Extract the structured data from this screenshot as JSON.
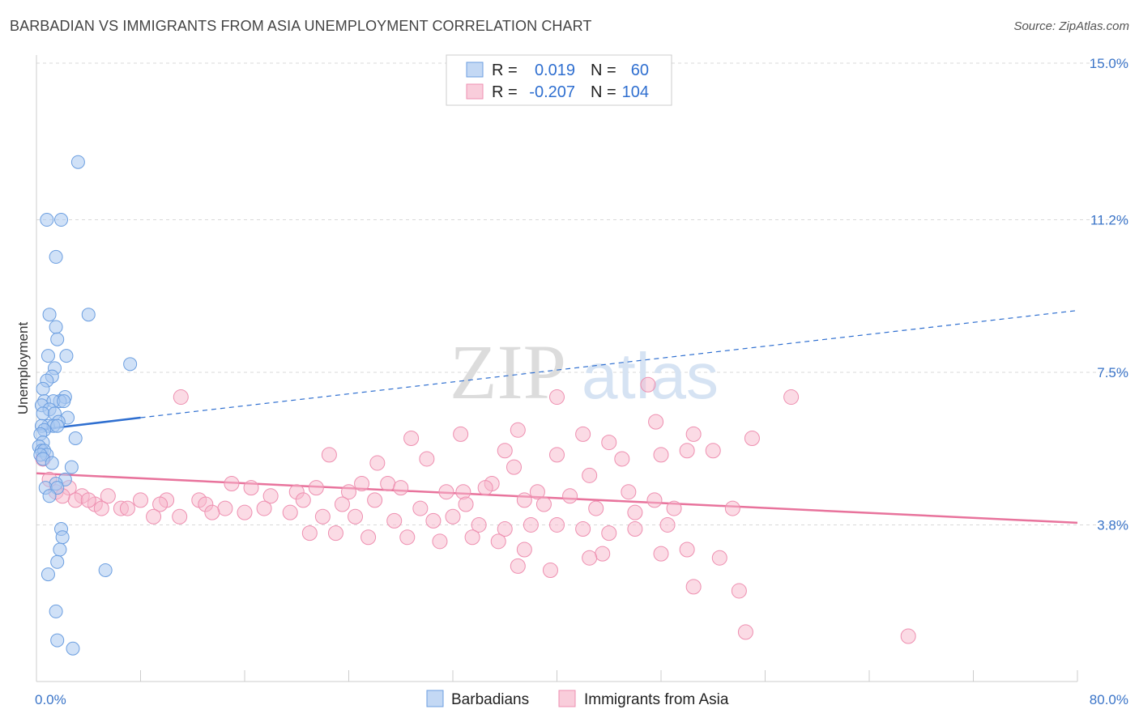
{
  "title": "BARBADIAN VS IMMIGRANTS FROM ASIA UNEMPLOYMENT CORRELATION CHART",
  "source": "Source: ZipAtlas.com",
  "watermark": {
    "zip": "ZIP",
    "atlas": "atlas"
  },
  "colors": {
    "blue_fill": "#a9c8f0",
    "blue_stroke": "#6b9ee0",
    "blue_line": "#2f6fd0",
    "pink_fill": "#f7b8cc",
    "pink_stroke": "#ee8fb0",
    "pink_line": "#e8739c",
    "grid": "#d9d9d9",
    "tick_label": "#3a74c8"
  },
  "legend": {
    "rows": [
      {
        "r_label": "R =",
        "r_value": "0.019",
        "n_label": "N =",
        "n_value": "60"
      },
      {
        "r_label": "R =",
        "r_value": "-0.207",
        "n_label": "N =",
        "n_value": "104"
      }
    ]
  },
  "chart_data": {
    "type": "scatter",
    "xlabel": "",
    "ylabel": "Unemployment",
    "x_range": [
      0,
      80
    ],
    "y_range": [
      0.0,
      15.0
    ],
    "x_tick_labels": [
      "0.0%",
      "80.0%"
    ],
    "y_ticks": [
      3.8,
      7.5,
      11.2,
      15.0
    ],
    "y_tick_labels": [
      "3.8%",
      "7.5%",
      "11.2%",
      "15.0%"
    ],
    "grid": true,
    "legend_position": "top-center",
    "series": [
      {
        "name": "Barbadians",
        "trend": {
          "x0": 0,
          "y0": 6.1,
          "x1": 8,
          "y1": 6.4,
          "dashed_to_x": 80,
          "dashed_to_y": 9.0
        },
        "points": [
          [
            3.2,
            12.6
          ],
          [
            0.8,
            11.2
          ],
          [
            1.9,
            11.2
          ],
          [
            1.5,
            10.3
          ],
          [
            4.0,
            8.9
          ],
          [
            1.0,
            8.9
          ],
          [
            1.5,
            8.6
          ],
          [
            1.6,
            8.3
          ],
          [
            2.3,
            7.9
          ],
          [
            0.9,
            7.9
          ],
          [
            7.2,
            7.7
          ],
          [
            1.4,
            7.6
          ],
          [
            1.2,
            7.4
          ],
          [
            0.8,
            7.3
          ],
          [
            0.5,
            7.1
          ],
          [
            2.2,
            6.9
          ],
          [
            0.6,
            6.8
          ],
          [
            1.8,
            6.8
          ],
          [
            1.3,
            6.8
          ],
          [
            2.1,
            6.8
          ],
          [
            0.4,
            6.7
          ],
          [
            1.0,
            6.6
          ],
          [
            0.5,
            6.5
          ],
          [
            1.4,
            6.5
          ],
          [
            2.4,
            6.4
          ],
          [
            1.7,
            6.3
          ],
          [
            0.9,
            6.2
          ],
          [
            1.3,
            6.2
          ],
          [
            1.6,
            6.2
          ],
          [
            0.4,
            6.2
          ],
          [
            0.6,
            6.1
          ],
          [
            0.3,
            6.0
          ],
          [
            3.0,
            5.9
          ],
          [
            0.5,
            5.8
          ],
          [
            0.2,
            5.7
          ],
          [
            0.4,
            5.6
          ],
          [
            0.6,
            5.6
          ],
          [
            0.8,
            5.5
          ],
          [
            0.3,
            5.5
          ],
          [
            0.5,
            5.4
          ],
          [
            1.2,
            5.3
          ],
          [
            2.7,
            5.2
          ],
          [
            2.2,
            4.9
          ],
          [
            1.5,
            4.8
          ],
          [
            0.7,
            4.7
          ],
          [
            1.6,
            4.7
          ],
          [
            1.0,
            4.5
          ],
          [
            1.9,
            3.7
          ],
          [
            2.0,
            3.5
          ],
          [
            1.8,
            3.2
          ],
          [
            1.6,
            2.9
          ],
          [
            0.9,
            2.6
          ],
          [
            5.3,
            2.7
          ],
          [
            1.5,
            1.7
          ],
          [
            1.6,
            1.0
          ],
          [
            2.8,
            0.8
          ]
        ]
      },
      {
        "name": "Immigrants from Asia",
        "trend": {
          "x0": 0,
          "y0": 5.05,
          "x1": 80,
          "y1": 3.85
        },
        "points": [
          [
            11.1,
            6.9
          ],
          [
            40.0,
            6.9
          ],
          [
            47.0,
            7.2
          ],
          [
            58.0,
            6.9
          ],
          [
            32.6,
            6.0
          ],
          [
            28.8,
            5.9
          ],
          [
            37.0,
            6.1
          ],
          [
            42.0,
            6.0
          ],
          [
            47.6,
            6.3
          ],
          [
            50.5,
            6.0
          ],
          [
            44.0,
            5.8
          ],
          [
            22.5,
            5.5
          ],
          [
            26.2,
            5.3
          ],
          [
            40.0,
            5.5
          ],
          [
            36.0,
            5.6
          ],
          [
            52.0,
            5.6
          ],
          [
            55.0,
            5.9
          ],
          [
            30.0,
            5.4
          ],
          [
            45.0,
            5.4
          ],
          [
            48.0,
            5.5
          ],
          [
            50.0,
            5.6
          ],
          [
            36.7,
            5.2
          ],
          [
            42.5,
            5.0
          ],
          [
            35.0,
            4.8
          ],
          [
            15.0,
            4.8
          ],
          [
            16.5,
            4.7
          ],
          [
            20.0,
            4.6
          ],
          [
            21.5,
            4.7
          ],
          [
            24.0,
            4.6
          ],
          [
            25.0,
            4.8
          ],
          [
            27.0,
            4.8
          ],
          [
            28.0,
            4.7
          ],
          [
            31.5,
            4.6
          ],
          [
            32.8,
            4.6
          ],
          [
            34.5,
            4.7
          ],
          [
            38.5,
            4.6
          ],
          [
            41.0,
            4.5
          ],
          [
            45.5,
            4.6
          ],
          [
            47.5,
            4.4
          ],
          [
            18.0,
            4.5
          ],
          [
            20.5,
            4.4
          ],
          [
            23.5,
            4.3
          ],
          [
            26.0,
            4.4
          ],
          [
            29.5,
            4.2
          ],
          [
            33.0,
            4.3
          ],
          [
            37.5,
            4.4
          ],
          [
            39.0,
            4.3
          ],
          [
            43.0,
            4.2
          ],
          [
            46.0,
            4.1
          ],
          [
            49.0,
            4.2
          ],
          [
            53.5,
            4.2
          ],
          [
            10.0,
            4.4
          ],
          [
            9.5,
            4.3
          ],
          [
            8.0,
            4.4
          ],
          [
            12.5,
            4.4
          ],
          [
            13.0,
            4.3
          ],
          [
            14.5,
            4.2
          ],
          [
            16.0,
            4.1
          ],
          [
            17.5,
            4.2
          ],
          [
            19.5,
            4.1
          ],
          [
            22.0,
            4.0
          ],
          [
            24.5,
            4.0
          ],
          [
            27.5,
            3.9
          ],
          [
            30.5,
            3.9
          ],
          [
            32.0,
            4.0
          ],
          [
            34.0,
            3.8
          ],
          [
            36.0,
            3.7
          ],
          [
            38.0,
            3.8
          ],
          [
            40.0,
            3.8
          ],
          [
            42.0,
            3.7
          ],
          [
            44.0,
            3.6
          ],
          [
            46.0,
            3.7
          ],
          [
            48.5,
            3.8
          ],
          [
            21.0,
            3.6
          ],
          [
            23.0,
            3.6
          ],
          [
            25.5,
            3.5
          ],
          [
            28.5,
            3.5
          ],
          [
            31.0,
            3.4
          ],
          [
            33.5,
            3.5
          ],
          [
            35.5,
            3.4
          ],
          [
            1.5,
            4.6
          ],
          [
            2.5,
            4.7
          ],
          [
            3.5,
            4.5
          ],
          [
            4.5,
            4.3
          ],
          [
            5.0,
            4.2
          ],
          [
            3.0,
            4.4
          ],
          [
            1.0,
            4.9
          ],
          [
            0.5,
            5.4
          ],
          [
            2.0,
            4.5
          ],
          [
            4.0,
            4.4
          ],
          [
            6.5,
            4.2
          ],
          [
            7.0,
            4.2
          ],
          [
            5.5,
            4.5
          ],
          [
            9.0,
            4.0
          ],
          [
            11.0,
            4.0
          ],
          [
            13.5,
            4.1
          ],
          [
            37.5,
            3.2
          ],
          [
            43.5,
            3.1
          ],
          [
            48.0,
            3.1
          ],
          [
            50.0,
            3.2
          ],
          [
            42.5,
            3.0
          ],
          [
            52.5,
            3.0
          ],
          [
            37.0,
            2.8
          ],
          [
            39.5,
            2.7
          ],
          [
            50.5,
            2.3
          ],
          [
            54.0,
            2.2
          ],
          [
            54.5,
            1.2
          ],
          [
            67.0,
            1.1
          ]
        ]
      }
    ]
  }
}
